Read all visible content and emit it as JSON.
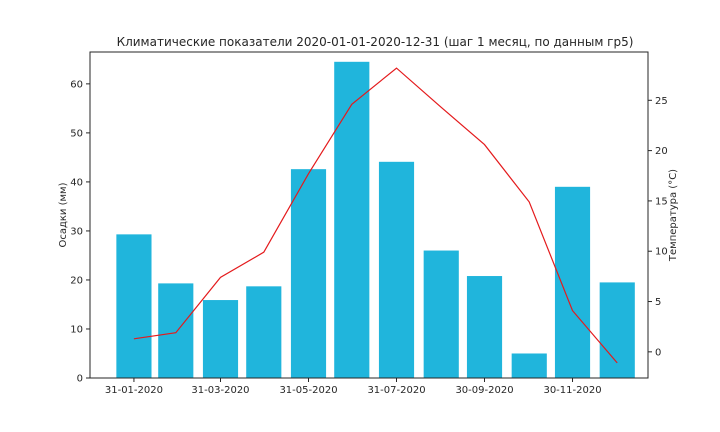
{
  "chart_data": {
    "type": "bar",
    "title": "Климатические показатели 2020-01-01-2020-12-31 (шаг 1 месяц, по данным гр5)",
    "x": [
      "2020-01-31",
      "2020-02-29",
      "2020-03-31",
      "2020-04-30",
      "2020-05-31",
      "2020-06-30",
      "2020-07-31",
      "2020-08-31",
      "2020-09-30",
      "2020-10-31",
      "2020-11-30",
      "2020-12-31"
    ],
    "xtick_labels": [
      "31-01-2020",
      "31-03-2020",
      "31-05-2020",
      "31-07-2020",
      "30-09-2020",
      "30-11-2020"
    ],
    "xtick_dates": [
      "2020-01-31",
      "2020-03-31",
      "2020-05-31",
      "2020-07-31",
      "2020-09-30",
      "2020-11-30"
    ],
    "ylabel": "Осадки (мм)",
    "ylim": [
      0,
      66.5
    ],
    "yticks": [
      0,
      10,
      20,
      30,
      40,
      50,
      60
    ],
    "y2label": "Температура (°C)",
    "y2lim": [
      -2.6,
      29.8
    ],
    "y2ticks": [
      0,
      5,
      10,
      15,
      20,
      25
    ],
    "grid": false,
    "series": [
      {
        "type": "bar",
        "axis": "left",
        "color": "#20b5dc",
        "values": [
          29.3,
          19.3,
          15.9,
          18.7,
          42.6,
          64.5,
          44.1,
          26.0,
          20.8,
          5.0,
          39.0,
          19.5
        ]
      },
      {
        "type": "line",
        "axis": "right",
        "color": "#e41a1c",
        "values": [
          1.3,
          1.9,
          7.4,
          9.9,
          17.7,
          24.6,
          28.2,
          24.3,
          20.6,
          14.9,
          4.1,
          -1.1
        ]
      }
    ]
  }
}
